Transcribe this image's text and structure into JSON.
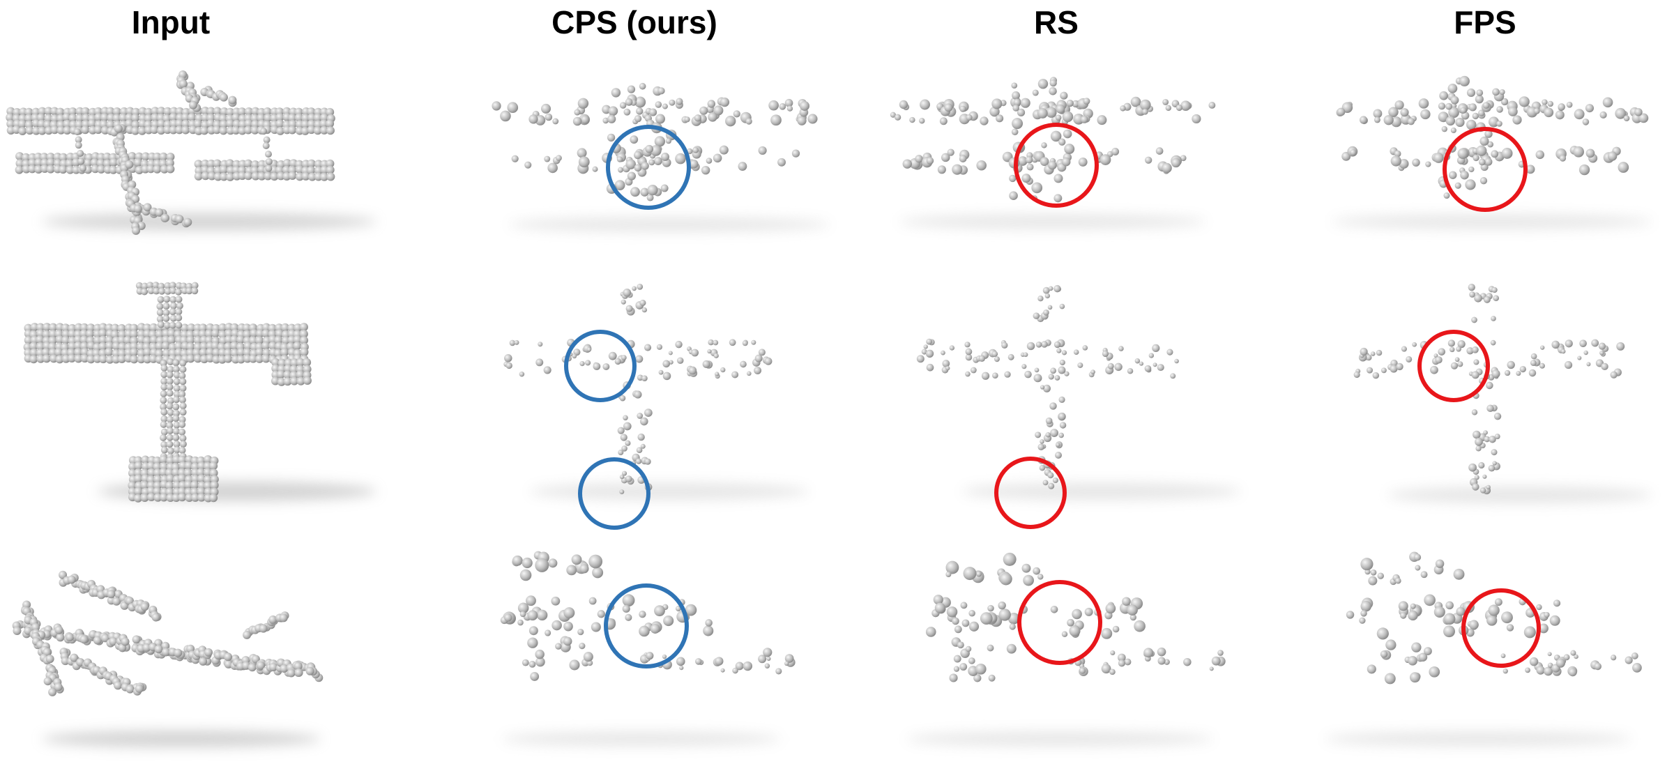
{
  "figure": {
    "columns": [
      {
        "id": "input",
        "title": "Input"
      },
      {
        "id": "cps",
        "title": "CPS (ours)"
      },
      {
        "id": "rs",
        "title": "RS"
      },
      {
        "id": "fps",
        "title": "FPS"
      }
    ],
    "rows": [
      {
        "id": "row-1",
        "subject": "biplane-side-view"
      },
      {
        "id": "row-2",
        "subject": "airplane-top-view"
      },
      {
        "id": "row-3",
        "subject": "biplane-oblique-view"
      }
    ],
    "colors": {
      "ours_highlight": "#2f74b5",
      "baseline_highlight": "#e8161a",
      "point": "#bdbdbd",
      "point_shade": "#7a7a7a",
      "shadow": "#c8c8c8"
    }
  }
}
